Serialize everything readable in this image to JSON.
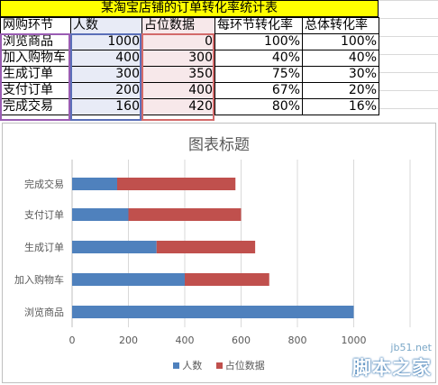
{
  "sheet": {
    "title": "某淘宝店铺的订单转化率统计表",
    "headers": [
      "网购环节",
      "人数",
      "占位数据",
      "每环节转化率",
      "总体转化率"
    ],
    "rows": [
      [
        "浏览商品",
        "1000",
        "0",
        "100%",
        "100%"
      ],
      [
        "加入购物车",
        "400",
        "300",
        "40%",
        "40%"
      ],
      [
        "生成订单",
        "300",
        "350",
        "75%",
        "30%"
      ],
      [
        "支付订单",
        "200",
        "400",
        "67%",
        "20%"
      ],
      [
        "完成交易",
        "160",
        "420",
        "80%",
        "16%"
      ]
    ]
  },
  "chart_data": {
    "type": "bar",
    "orientation": "horizontal",
    "stacked": true,
    "title": "图表标题",
    "categories": [
      "浏览商品",
      "加入购物车",
      "生成订单",
      "支付订单",
      "完成交易"
    ],
    "series": [
      {
        "name": "人数",
        "color": "#4f81bd",
        "values": [
          1000,
          400,
          300,
          200,
          160
        ]
      },
      {
        "name": "占位数据",
        "color": "#c0504d",
        "values": [
          0,
          300,
          350,
          400,
          420
        ]
      }
    ],
    "xlim": [
      0,
      1200
    ],
    "xticks": [
      "0",
      "200",
      "400",
      "600",
      "800",
      "1000"
    ],
    "grid": true,
    "legend_position": "bottom"
  },
  "watermark": {
    "site": "jb51.net",
    "name": "脚本之家"
  }
}
